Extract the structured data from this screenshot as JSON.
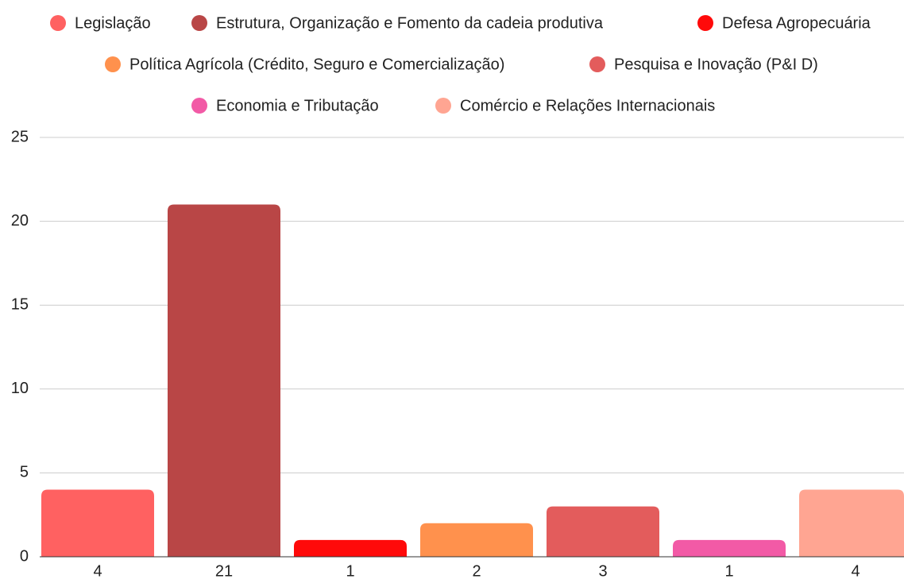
{
  "chart_data": {
    "type": "bar",
    "series": [
      {
        "name": "Legislação",
        "color": "#ff6161",
        "values": [
          4
        ]
      },
      {
        "name": "Estrutura, Organização e Fomento da cadeia produtiva",
        "color": "#b94646",
        "values": [
          21
        ]
      },
      {
        "name": "Defesa Agropecuária",
        "color": "#ff0a0a",
        "values": [
          1
        ]
      },
      {
        "name": "Política Agrícola (Crédito, Seguro e Comercialização)",
        "color": "#ff914d",
        "values": [
          2
        ]
      },
      {
        "name": "Pesquisa e Inovação (P&I D)",
        "color": "#e35c5c",
        "values": [
          3
        ]
      },
      {
        "name": "Economia e Tributação",
        "color": "#f25aa6",
        "values": [
          1
        ]
      },
      {
        "name": "Comércio e Relações Internacionais",
        "color": "#ffa592",
        "values": [
          4
        ]
      }
    ],
    "ylim": [
      0,
      25
    ],
    "yticks": [
      0,
      5,
      10,
      15,
      20,
      25
    ],
    "grid": true,
    "legend": "top"
  }
}
